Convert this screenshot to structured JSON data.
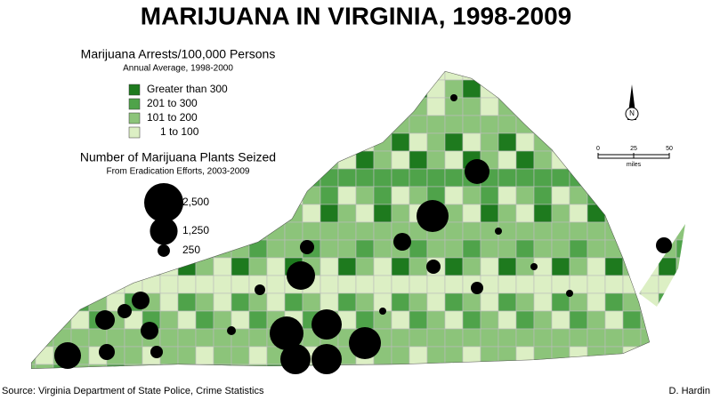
{
  "title": "MARIJUANA IN VIRGINIA, 1998-2009",
  "arrests_legend": {
    "title": "Marijuana Arrests/100,000 Persons",
    "subtitle": "Annual Average, 1998-2000",
    "items": [
      {
        "label": "Greater than 300",
        "color": "#1e7a1e"
      },
      {
        "label": "201 to 300",
        "color": "#4fa34a"
      },
      {
        "label": "101 to 200",
        "color": "#8cc47a"
      },
      {
        "label": "1 to 100",
        "color": "#dcefc4"
      }
    ]
  },
  "plants_legend": {
    "title": "Number of Marijuana Plants Seized",
    "subtitle": "From Eradication Efforts, 2003-2009",
    "sizes": [
      {
        "value": 2500,
        "label": "2,500"
      },
      {
        "value": 1250,
        "label": "1,250"
      },
      {
        "value": 250,
        "label": "250"
      }
    ]
  },
  "scale_bar": {
    "ticks": [
      0,
      25,
      50
    ],
    "unit": "miles"
  },
  "north_label": "N",
  "source": "Source: Virginia Department of State Police, Crime Statistics",
  "author": "D. Hardin"
}
